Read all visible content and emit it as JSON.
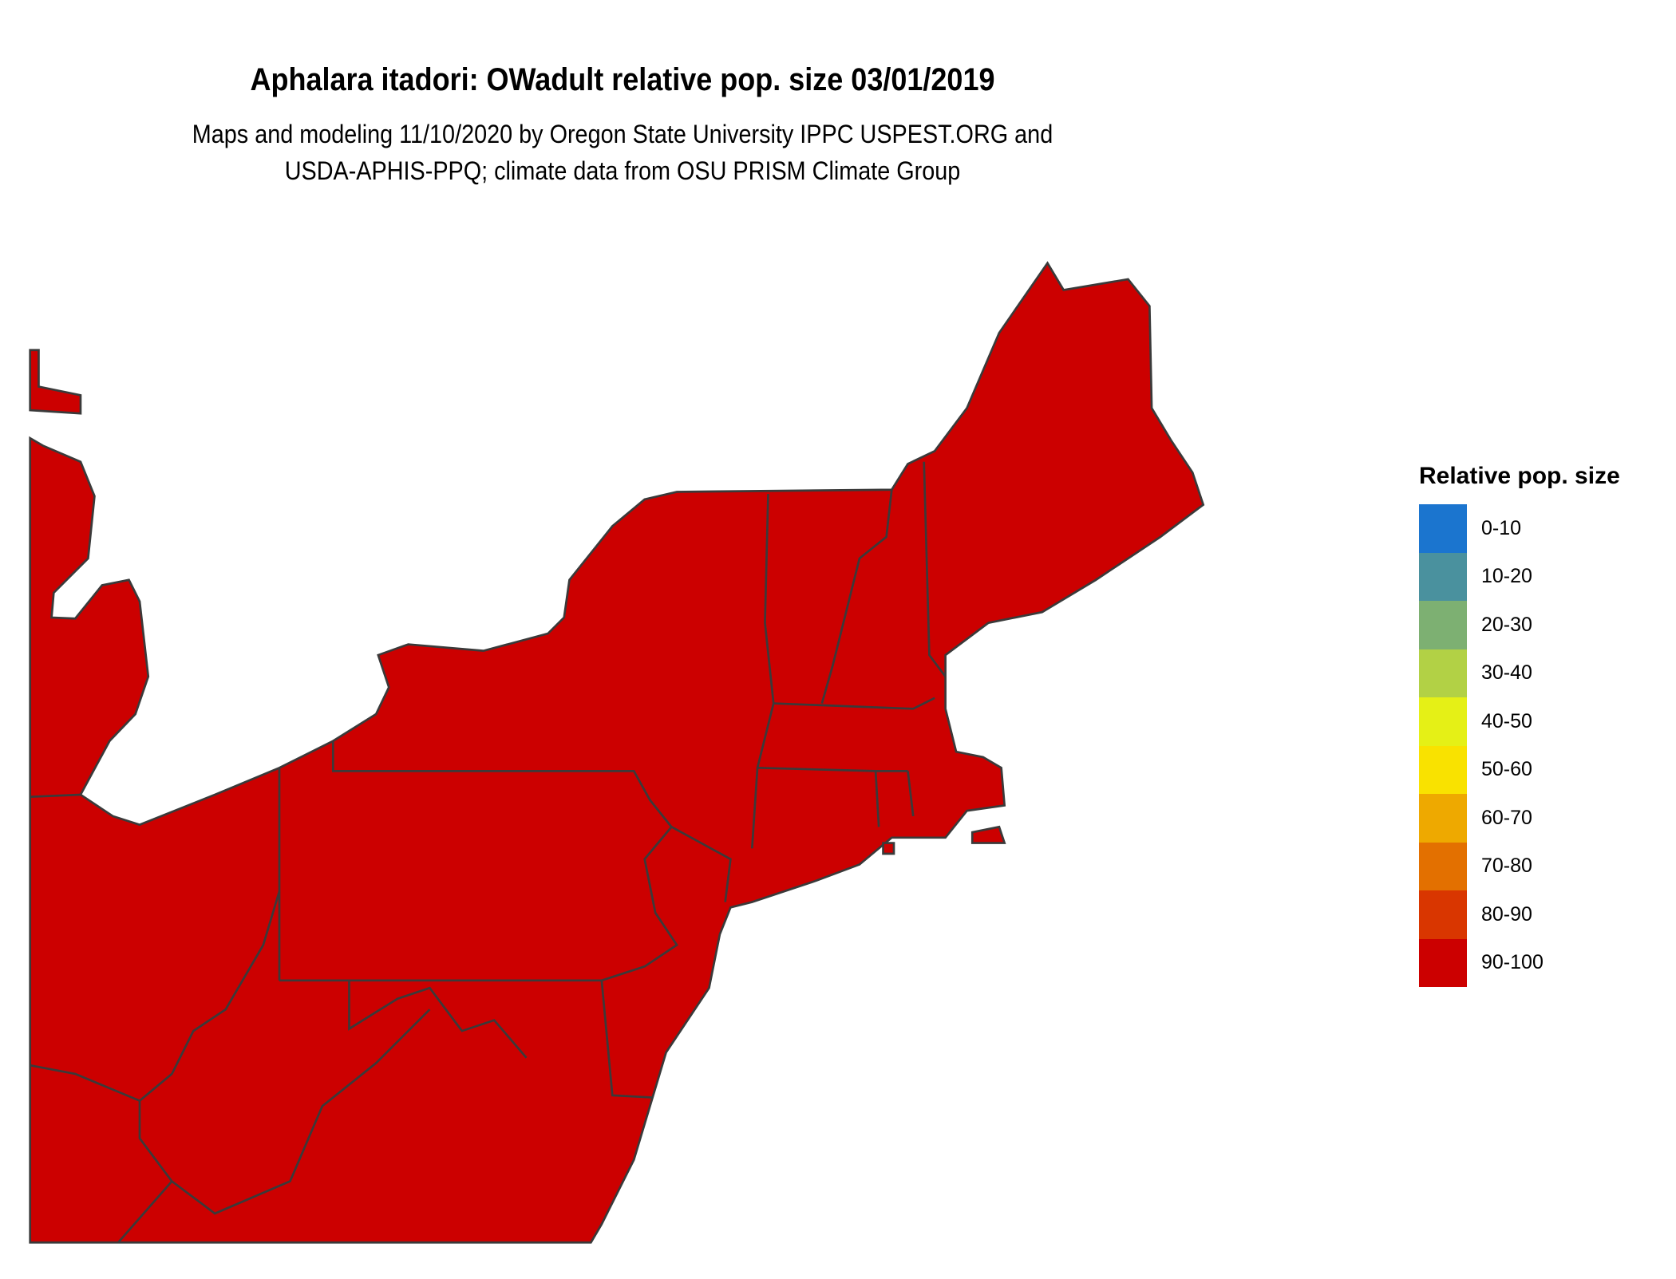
{
  "title": "Aphalara itadori: OWadult relative pop. size 03/01/2019",
  "subtitle_lines": [
    "Maps and modeling 11/10/2020 by Oregon State University IPPC USPEST.ORG and",
    "USDA-APHIS-PPQ; climate data from OSU PRISM Climate Group"
  ],
  "map": {
    "region": "Northeastern United States",
    "fill_class": "90-100",
    "fill_color": "#CC0000",
    "border_color": "#3A3A3A"
  },
  "legend": {
    "title": "Relative pop. size",
    "items": [
      {
        "label": "0-10",
        "color": "#1B75CF"
      },
      {
        "label": "10-20",
        "color": "#4A919E"
      },
      {
        "label": "20-30",
        "color": "#7DB072"
      },
      {
        "label": "30-40",
        "color": "#B2D145"
      },
      {
        "label": "40-50",
        "color": "#E5F016"
      },
      {
        "label": "50-60",
        "color": "#F9E200"
      },
      {
        "label": "60-70",
        "color": "#EEA900"
      },
      {
        "label": "70-80",
        "color": "#E37000"
      },
      {
        "label": "80-90",
        "color": "#D93600"
      },
      {
        "label": "90-100",
        "color": "#CC0000"
      }
    ]
  }
}
